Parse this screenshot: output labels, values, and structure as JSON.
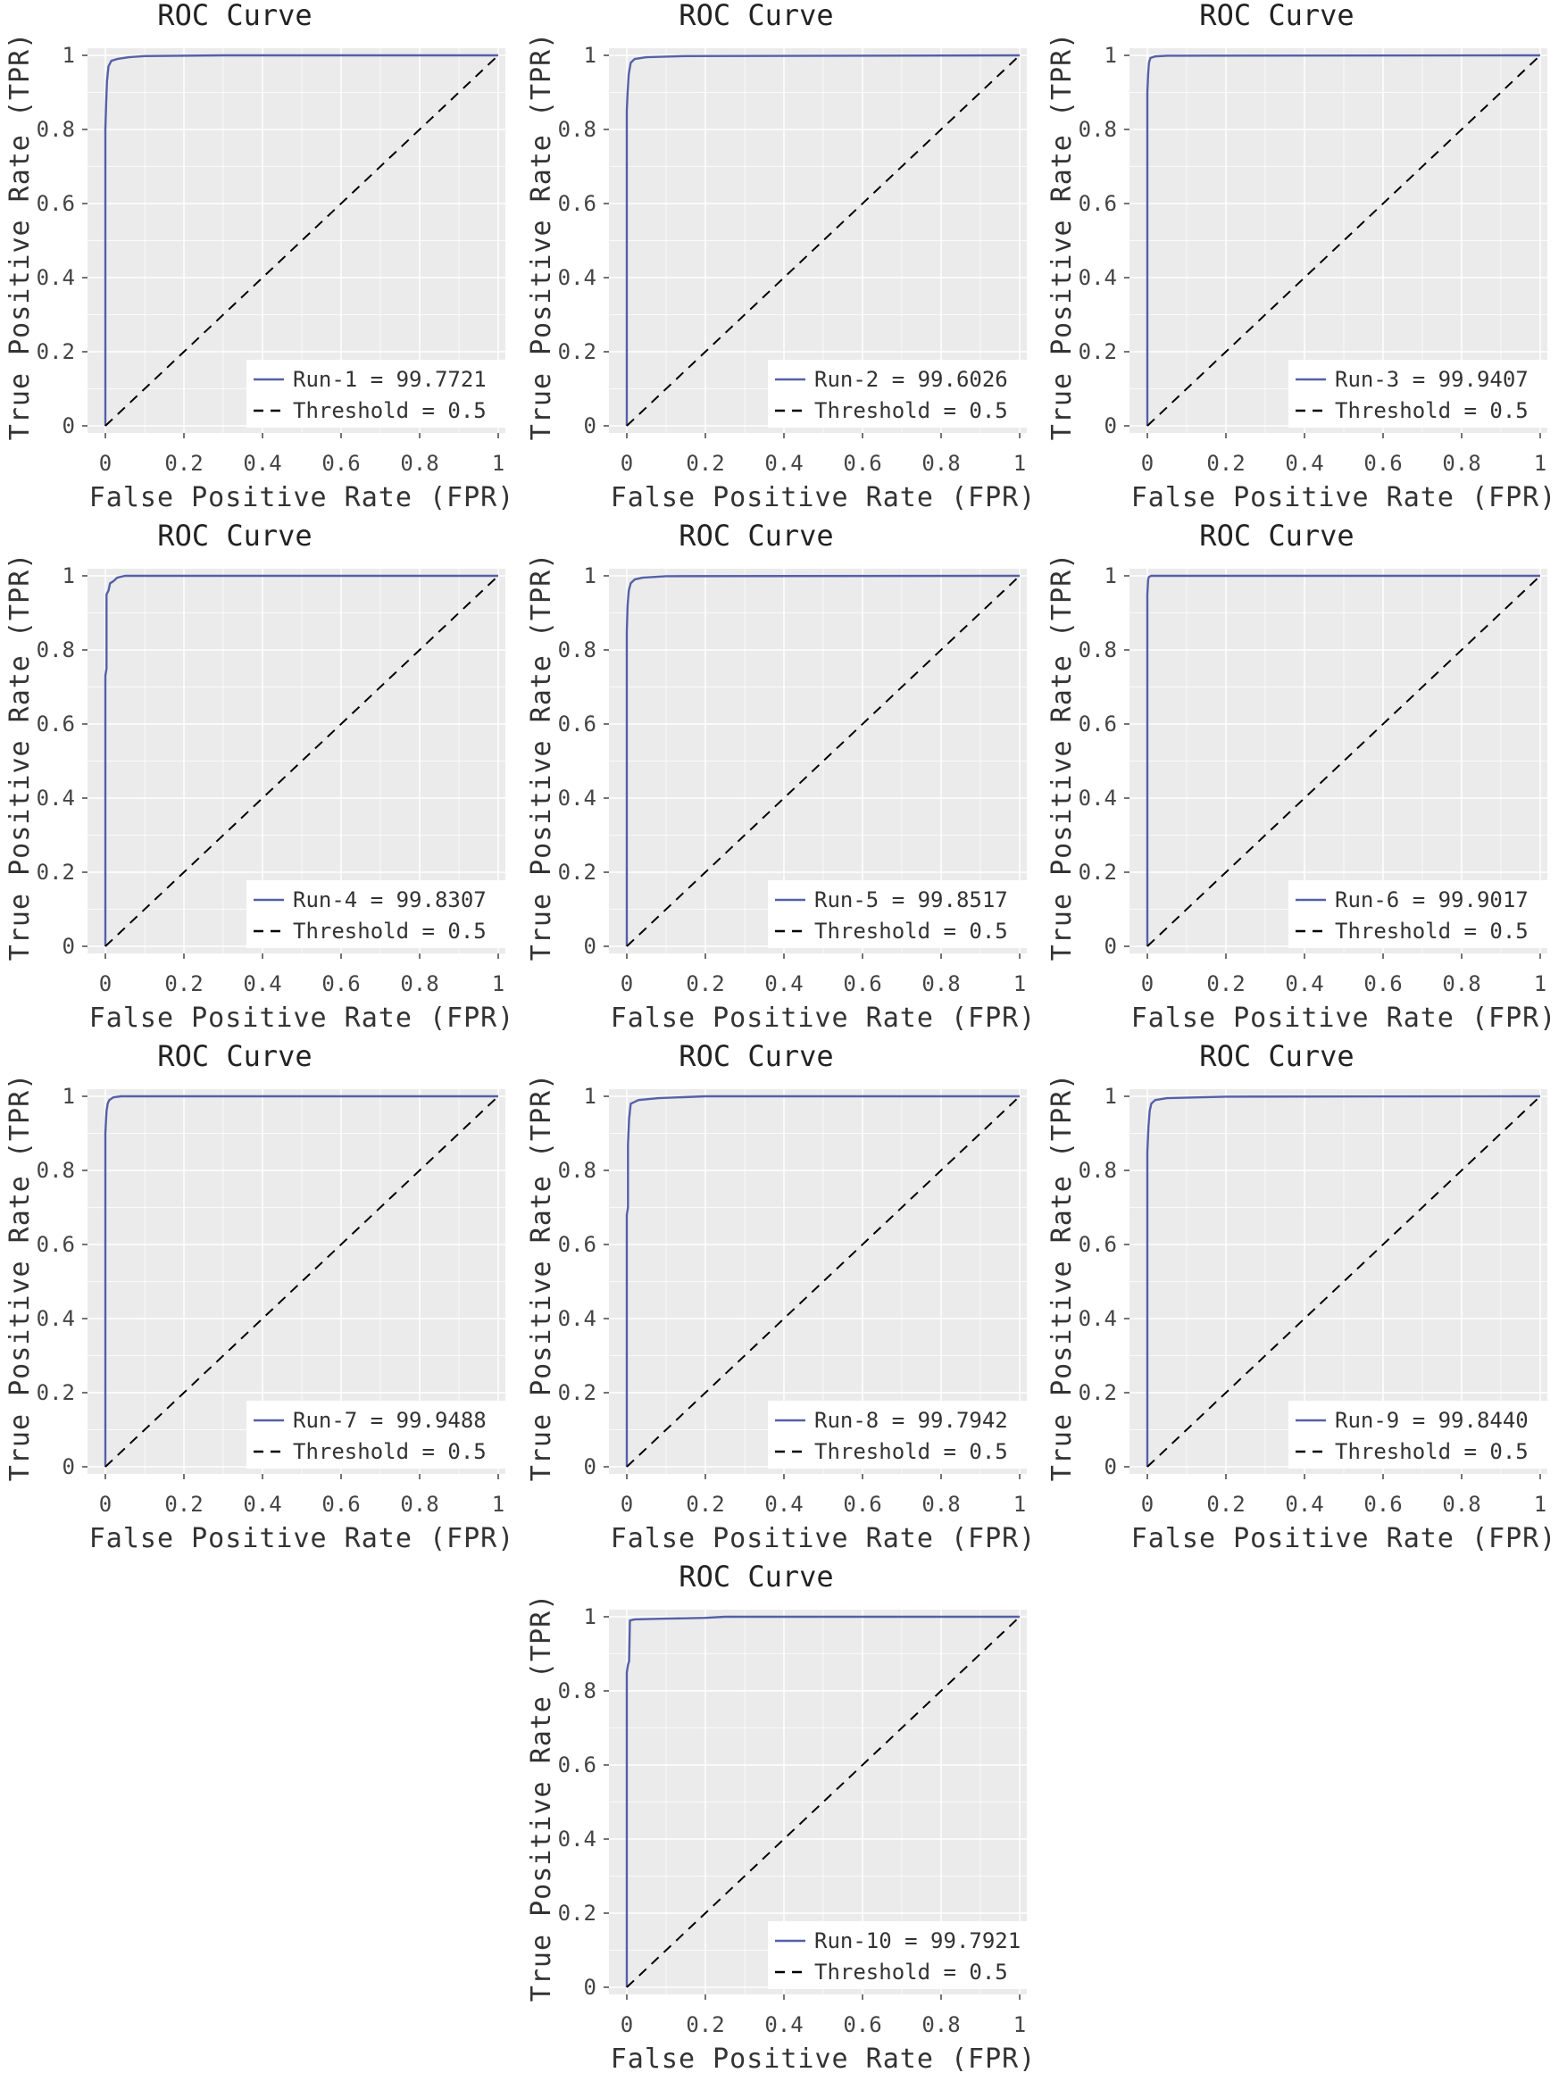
{
  "colors": {
    "panel_background": "#ebebeb",
    "grid": "#ffffff",
    "roc_line": "#5560a8",
    "threshold_line": "#000000",
    "legend_background": "#ffffff"
  },
  "chart_data": [
    {
      "type": "line",
      "title": "ROC Curve",
      "xlabel": "False Positive Rate (FPR)",
      "ylabel": "True Positive Rate (TPR)",
      "xlim": [
        0,
        1
      ],
      "ylim": [
        0,
        1
      ],
      "x_ticks": [
        "0",
        "0.2",
        "0.4",
        "0.6",
        "0.8",
        "1"
      ],
      "y_ticks": [
        "0",
        "0.2",
        "0.4",
        "0.6",
        "0.8",
        "1"
      ],
      "grid": true,
      "legend_position": "bottom-right",
      "series": [
        {
          "name": "Run-1 = 99.7721",
          "style": "solid",
          "x": [
            0,
            0,
            0.002,
            0.004,
            0.008,
            0.015,
            0.03,
            0.06,
            0.1,
            0.3,
            1
          ],
          "y": [
            0,
            0.8,
            0.87,
            0.93,
            0.97,
            0.985,
            0.99,
            0.995,
            0.998,
            1,
            1
          ]
        },
        {
          "name": "Threshold = 0.5",
          "style": "dashed",
          "x": [
            0,
            1
          ],
          "y": [
            0,
            1
          ]
        }
      ]
    },
    {
      "type": "line",
      "title": "ROC Curve",
      "xlabel": "False Positive Rate (FPR)",
      "ylabel": "True Positive Rate (TPR)",
      "xlim": [
        0,
        1
      ],
      "ylim": [
        0,
        1
      ],
      "x_ticks": [
        "0",
        "0.2",
        "0.4",
        "0.6",
        "0.8",
        "1"
      ],
      "y_ticks": [
        "0",
        "0.2",
        "0.4",
        "0.6",
        "0.8",
        "1"
      ],
      "grid": true,
      "legend_position": "bottom-right",
      "series": [
        {
          "name": "Run-2 = 99.6026",
          "style": "solid",
          "x": [
            0,
            0,
            0.002,
            0.005,
            0.01,
            0.02,
            0.05,
            0.15,
            1
          ],
          "y": [
            0,
            0.85,
            0.9,
            0.95,
            0.98,
            0.99,
            0.995,
            0.998,
            1
          ]
        },
        {
          "name": "Threshold = 0.5",
          "style": "dashed",
          "x": [
            0,
            1
          ],
          "y": [
            0,
            1
          ]
        }
      ]
    },
    {
      "type": "line",
      "title": "ROC Curve",
      "xlabel": "False Positive Rate (FPR)",
      "ylabel": "True Positive Rate (TPR)",
      "xlim": [
        0,
        1
      ],
      "ylim": [
        0,
        1
      ],
      "x_ticks": [
        "0",
        "0.2",
        "0.4",
        "0.6",
        "0.8",
        "1"
      ],
      "y_ticks": [
        "0",
        "0.2",
        "0.4",
        "0.6",
        "0.8",
        "1"
      ],
      "grid": true,
      "legend_position": "bottom-right",
      "series": [
        {
          "name": "Run-3 = 99.9407",
          "style": "solid",
          "x": [
            0,
            0,
            0.002,
            0.004,
            0.008,
            0.02,
            0.05,
            1
          ],
          "y": [
            0,
            0.9,
            0.95,
            0.98,
            0.993,
            0.997,
            0.999,
            1
          ]
        },
        {
          "name": "Threshold = 0.5",
          "style": "dashed",
          "x": [
            0,
            1
          ],
          "y": [
            0,
            1
          ]
        }
      ]
    },
    {
      "type": "line",
      "title": "ROC Curve",
      "xlabel": "False Positive Rate (FPR)",
      "ylabel": "True Positive Rate (TPR)",
      "xlim": [
        0,
        1
      ],
      "ylim": [
        0,
        1
      ],
      "x_ticks": [
        "0",
        "0.2",
        "0.4",
        "0.6",
        "0.8",
        "1"
      ],
      "y_ticks": [
        "0",
        "0.2",
        "0.4",
        "0.6",
        "0.8",
        "1"
      ],
      "grid": true,
      "legend_position": "bottom-right",
      "series": [
        {
          "name": "Run-4 = 99.8307",
          "style": "solid",
          "x": [
            0,
            0,
            0.003,
            0.003,
            0.008,
            0.012,
            0.02,
            0.03,
            0.05,
            1
          ],
          "y": [
            0,
            0.73,
            0.75,
            0.95,
            0.96,
            0.98,
            0.985,
            0.995,
            1,
            1
          ]
        },
        {
          "name": "Threshold = 0.5",
          "style": "dashed",
          "x": [
            0,
            1
          ],
          "y": [
            0,
            1
          ]
        }
      ]
    },
    {
      "type": "line",
      "title": "ROC Curve",
      "xlabel": "False Positive Rate (FPR)",
      "ylabel": "True Positive Rate (TPR)",
      "xlim": [
        0,
        1
      ],
      "ylim": [
        0,
        1
      ],
      "x_ticks": [
        "0",
        "0.2",
        "0.4",
        "0.6",
        "0.8",
        "1"
      ],
      "y_ticks": [
        "0",
        "0.2",
        "0.4",
        "0.6",
        "0.8",
        "1"
      ],
      "grid": true,
      "legend_position": "bottom-right",
      "series": [
        {
          "name": "Run-5 = 99.8517",
          "style": "solid",
          "x": [
            0,
            0,
            0.002,
            0.005,
            0.01,
            0.02,
            0.04,
            0.1,
            1
          ],
          "y": [
            0,
            0.85,
            0.92,
            0.96,
            0.98,
            0.99,
            0.995,
            0.999,
            1
          ]
        },
        {
          "name": "Threshold = 0.5",
          "style": "dashed",
          "x": [
            0,
            1
          ],
          "y": [
            0,
            1
          ]
        }
      ]
    },
    {
      "type": "line",
      "title": "ROC Curve",
      "xlabel": "False Positive Rate (FPR)",
      "ylabel": "True Positive Rate (TPR)",
      "xlim": [
        0,
        1
      ],
      "ylim": [
        0,
        1
      ],
      "x_ticks": [
        "0",
        "0.2",
        "0.4",
        "0.6",
        "0.8",
        "1"
      ],
      "y_ticks": [
        "0",
        "0.2",
        "0.4",
        "0.6",
        "0.8",
        "1"
      ],
      "grid": true,
      "legend_position": "bottom-right",
      "series": [
        {
          "name": "Run-6 = 99.9017",
          "style": "solid",
          "x": [
            0,
            0,
            0.002,
            0.004,
            0.01,
            1
          ],
          "y": [
            0,
            0.95,
            0.99,
            0.997,
            1,
            1
          ]
        },
        {
          "name": "Threshold = 0.5",
          "style": "dashed",
          "x": [
            0,
            1
          ],
          "y": [
            0,
            1
          ]
        }
      ]
    },
    {
      "type": "line",
      "title": "ROC Curve",
      "xlabel": "False Positive Rate (FPR)",
      "ylabel": "True Positive Rate (TPR)",
      "xlim": [
        0,
        1
      ],
      "ylim": [
        0,
        1
      ],
      "x_ticks": [
        "0",
        "0.2",
        "0.4",
        "0.6",
        "0.8",
        "1"
      ],
      "y_ticks": [
        "0",
        "0.2",
        "0.4",
        "0.6",
        "0.8",
        "1"
      ],
      "grid": true,
      "legend_position": "bottom-right",
      "series": [
        {
          "name": "Run-7 = 99.9488",
          "style": "solid",
          "x": [
            0,
            0,
            0.003,
            0.006,
            0.01,
            0.02,
            0.04,
            1
          ],
          "y": [
            0,
            0.9,
            0.96,
            0.98,
            0.99,
            0.997,
            1,
            1
          ]
        },
        {
          "name": "Threshold = 0.5",
          "style": "dashed",
          "x": [
            0,
            1
          ],
          "y": [
            0,
            1
          ]
        }
      ]
    },
    {
      "type": "line",
      "title": "ROC Curve",
      "xlabel": "False Positive Rate (FPR)",
      "ylabel": "True Positive Rate (TPR)",
      "xlim": [
        0,
        1
      ],
      "ylim": [
        0,
        1
      ],
      "x_ticks": [
        "0",
        "0.2",
        "0.4",
        "0.6",
        "0.8",
        "1"
      ],
      "y_ticks": [
        "0",
        "0.2",
        "0.4",
        "0.6",
        "0.8",
        "1"
      ],
      "grid": true,
      "legend_position": "bottom-right",
      "series": [
        {
          "name": "Run-8 = 99.7942",
          "style": "solid",
          "x": [
            0,
            0,
            0.003,
            0.003,
            0.006,
            0.01,
            0.03,
            0.08,
            0.2,
            1
          ],
          "y": [
            0,
            0.68,
            0.7,
            0.87,
            0.94,
            0.98,
            0.99,
            0.995,
            1,
            1
          ]
        },
        {
          "name": "Threshold = 0.5",
          "style": "dashed",
          "x": [
            0,
            1
          ],
          "y": [
            0,
            1
          ]
        }
      ]
    },
    {
      "type": "line",
      "title": "ROC Curve",
      "xlabel": "False Positive Rate (FPR)",
      "ylabel": "True Positive Rate (TPR)",
      "xlim": [
        0,
        1
      ],
      "ylim": [
        0,
        1
      ],
      "x_ticks": [
        "0",
        "0.2",
        "0.4",
        "0.6",
        "0.8",
        "1"
      ],
      "y_ticks": [
        "0",
        "0.2",
        "0.4",
        "0.6",
        "0.8",
        "1"
      ],
      "grid": true,
      "legend_position": "bottom-right",
      "series": [
        {
          "name": "Run-9 = 99.8440",
          "style": "solid",
          "x": [
            0,
            0,
            0.003,
            0.006,
            0.01,
            0.02,
            0.05,
            0.2,
            1
          ],
          "y": [
            0,
            0.85,
            0.92,
            0.96,
            0.98,
            0.99,
            0.995,
            0.999,
            1
          ]
        },
        {
          "name": "Threshold = 0.5",
          "style": "dashed",
          "x": [
            0,
            1
          ],
          "y": [
            0,
            1
          ]
        }
      ]
    },
    {
      "type": "line",
      "title": "ROC Curve",
      "xlabel": "False Positive Rate (FPR)",
      "ylabel": "True Positive Rate (TPR)",
      "xlim": [
        0,
        1
      ],
      "ylim": [
        0,
        1
      ],
      "x_ticks": [
        "0",
        "0.2",
        "0.4",
        "0.6",
        "0.8",
        "1"
      ],
      "y_ticks": [
        "0",
        "0.2",
        "0.4",
        "0.6",
        "0.8",
        "1"
      ],
      "grid": true,
      "legend_position": "bottom-right",
      "series": [
        {
          "name": "Run-10 = 99.7921",
          "style": "solid",
          "x": [
            0,
            0,
            0.003,
            0.006,
            0.008,
            0.02,
            0.1,
            0.2,
            0.25,
            1
          ],
          "y": [
            0,
            0.85,
            0.87,
            0.88,
            0.99,
            0.993,
            0.995,
            0.997,
            1,
            1
          ]
        },
        {
          "name": "Threshold = 0.5",
          "style": "dashed",
          "x": [
            0,
            1
          ],
          "y": [
            0,
            1
          ]
        }
      ]
    }
  ]
}
